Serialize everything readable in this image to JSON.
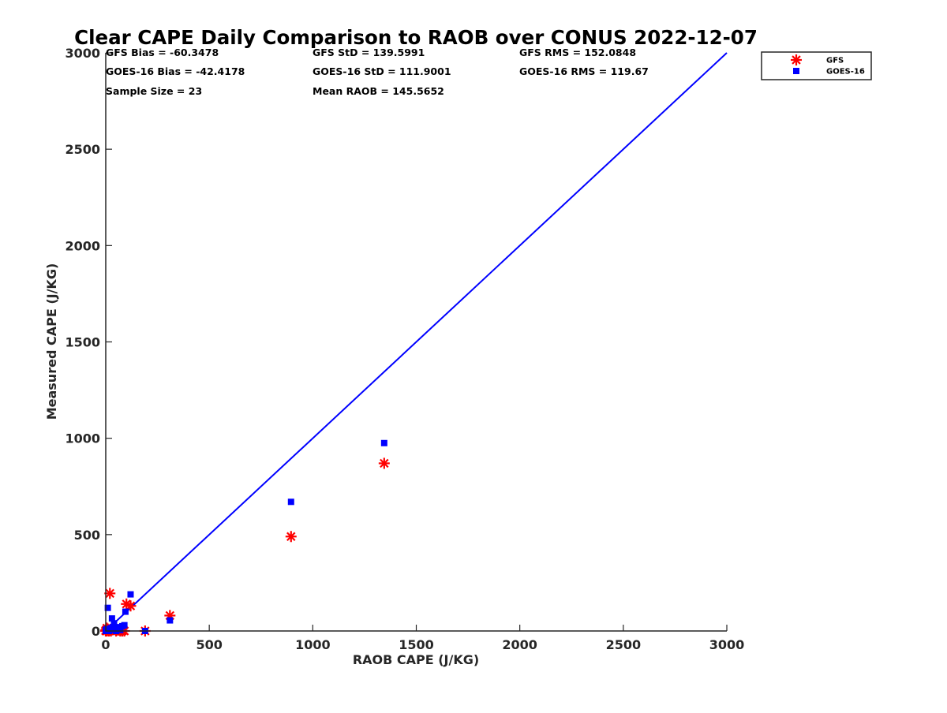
{
  "chart_data": {
    "type": "scatter",
    "title": "Clear CAPE Daily Comparison to RAOB over CONUS 2022-12-07",
    "xlabel": "RAOB CAPE (J/KG)",
    "ylabel": "Measured CAPE (J/KG)",
    "xlim": [
      0,
      3000
    ],
    "ylim": [
      0,
      3000
    ],
    "xticks": [
      0,
      500,
      1000,
      1500,
      2000,
      2500,
      3000
    ],
    "yticks": [
      0,
      500,
      1000,
      1500,
      2000,
      2500,
      3000
    ],
    "grid": false,
    "legend_position": "top-right, outside plot area",
    "reference_line": {
      "x": [
        0,
        3000
      ],
      "y": [
        0,
        3000
      ],
      "color": "#0000ff"
    },
    "stats": [
      [
        "GFS Bias = -60.3478",
        "GFS StD = 139.5991",
        "GFS RMS = 152.0848"
      ],
      [
        "GOES-16 Bias = -42.4178",
        "GOES-16 StD = 111.9001",
        "GOES-16 RMS = 119.67"
      ],
      [
        "Sample Size = 23",
        "Mean RAOB = 145.5652",
        ""
      ]
    ],
    "series": [
      {
        "name": "GFS",
        "marker": "asterisk",
        "color": "#ff0000",
        "x": [
          0,
          3,
          5,
          10,
          15,
          20,
          25,
          40,
          50,
          60,
          90,
          100,
          120,
          190,
          310,
          895,
          1345,
          5,
          12,
          30,
          70,
          80,
          0
        ],
        "y": [
          0,
          5,
          0,
          10,
          0,
          195,
          0,
          10,
          0,
          5,
          0,
          140,
          130,
          0,
          80,
          490,
          870,
          15,
          5,
          10,
          0,
          0,
          3
        ]
      },
      {
        "name": "GOES-16",
        "marker": "square",
        "color": "#0000ff",
        "x": [
          0,
          5,
          10,
          15,
          20,
          30,
          40,
          50,
          60,
          90,
          95,
          120,
          190,
          310,
          895,
          1345,
          0,
          25,
          55,
          80,
          8,
          35,
          70
        ],
        "y": [
          0,
          10,
          120,
          0,
          5,
          65,
          40,
          0,
          20,
          30,
          100,
          190,
          0,
          55,
          670,
          975,
          5,
          15,
          10,
          25,
          0,
          20,
          5
        ]
      }
    ]
  }
}
